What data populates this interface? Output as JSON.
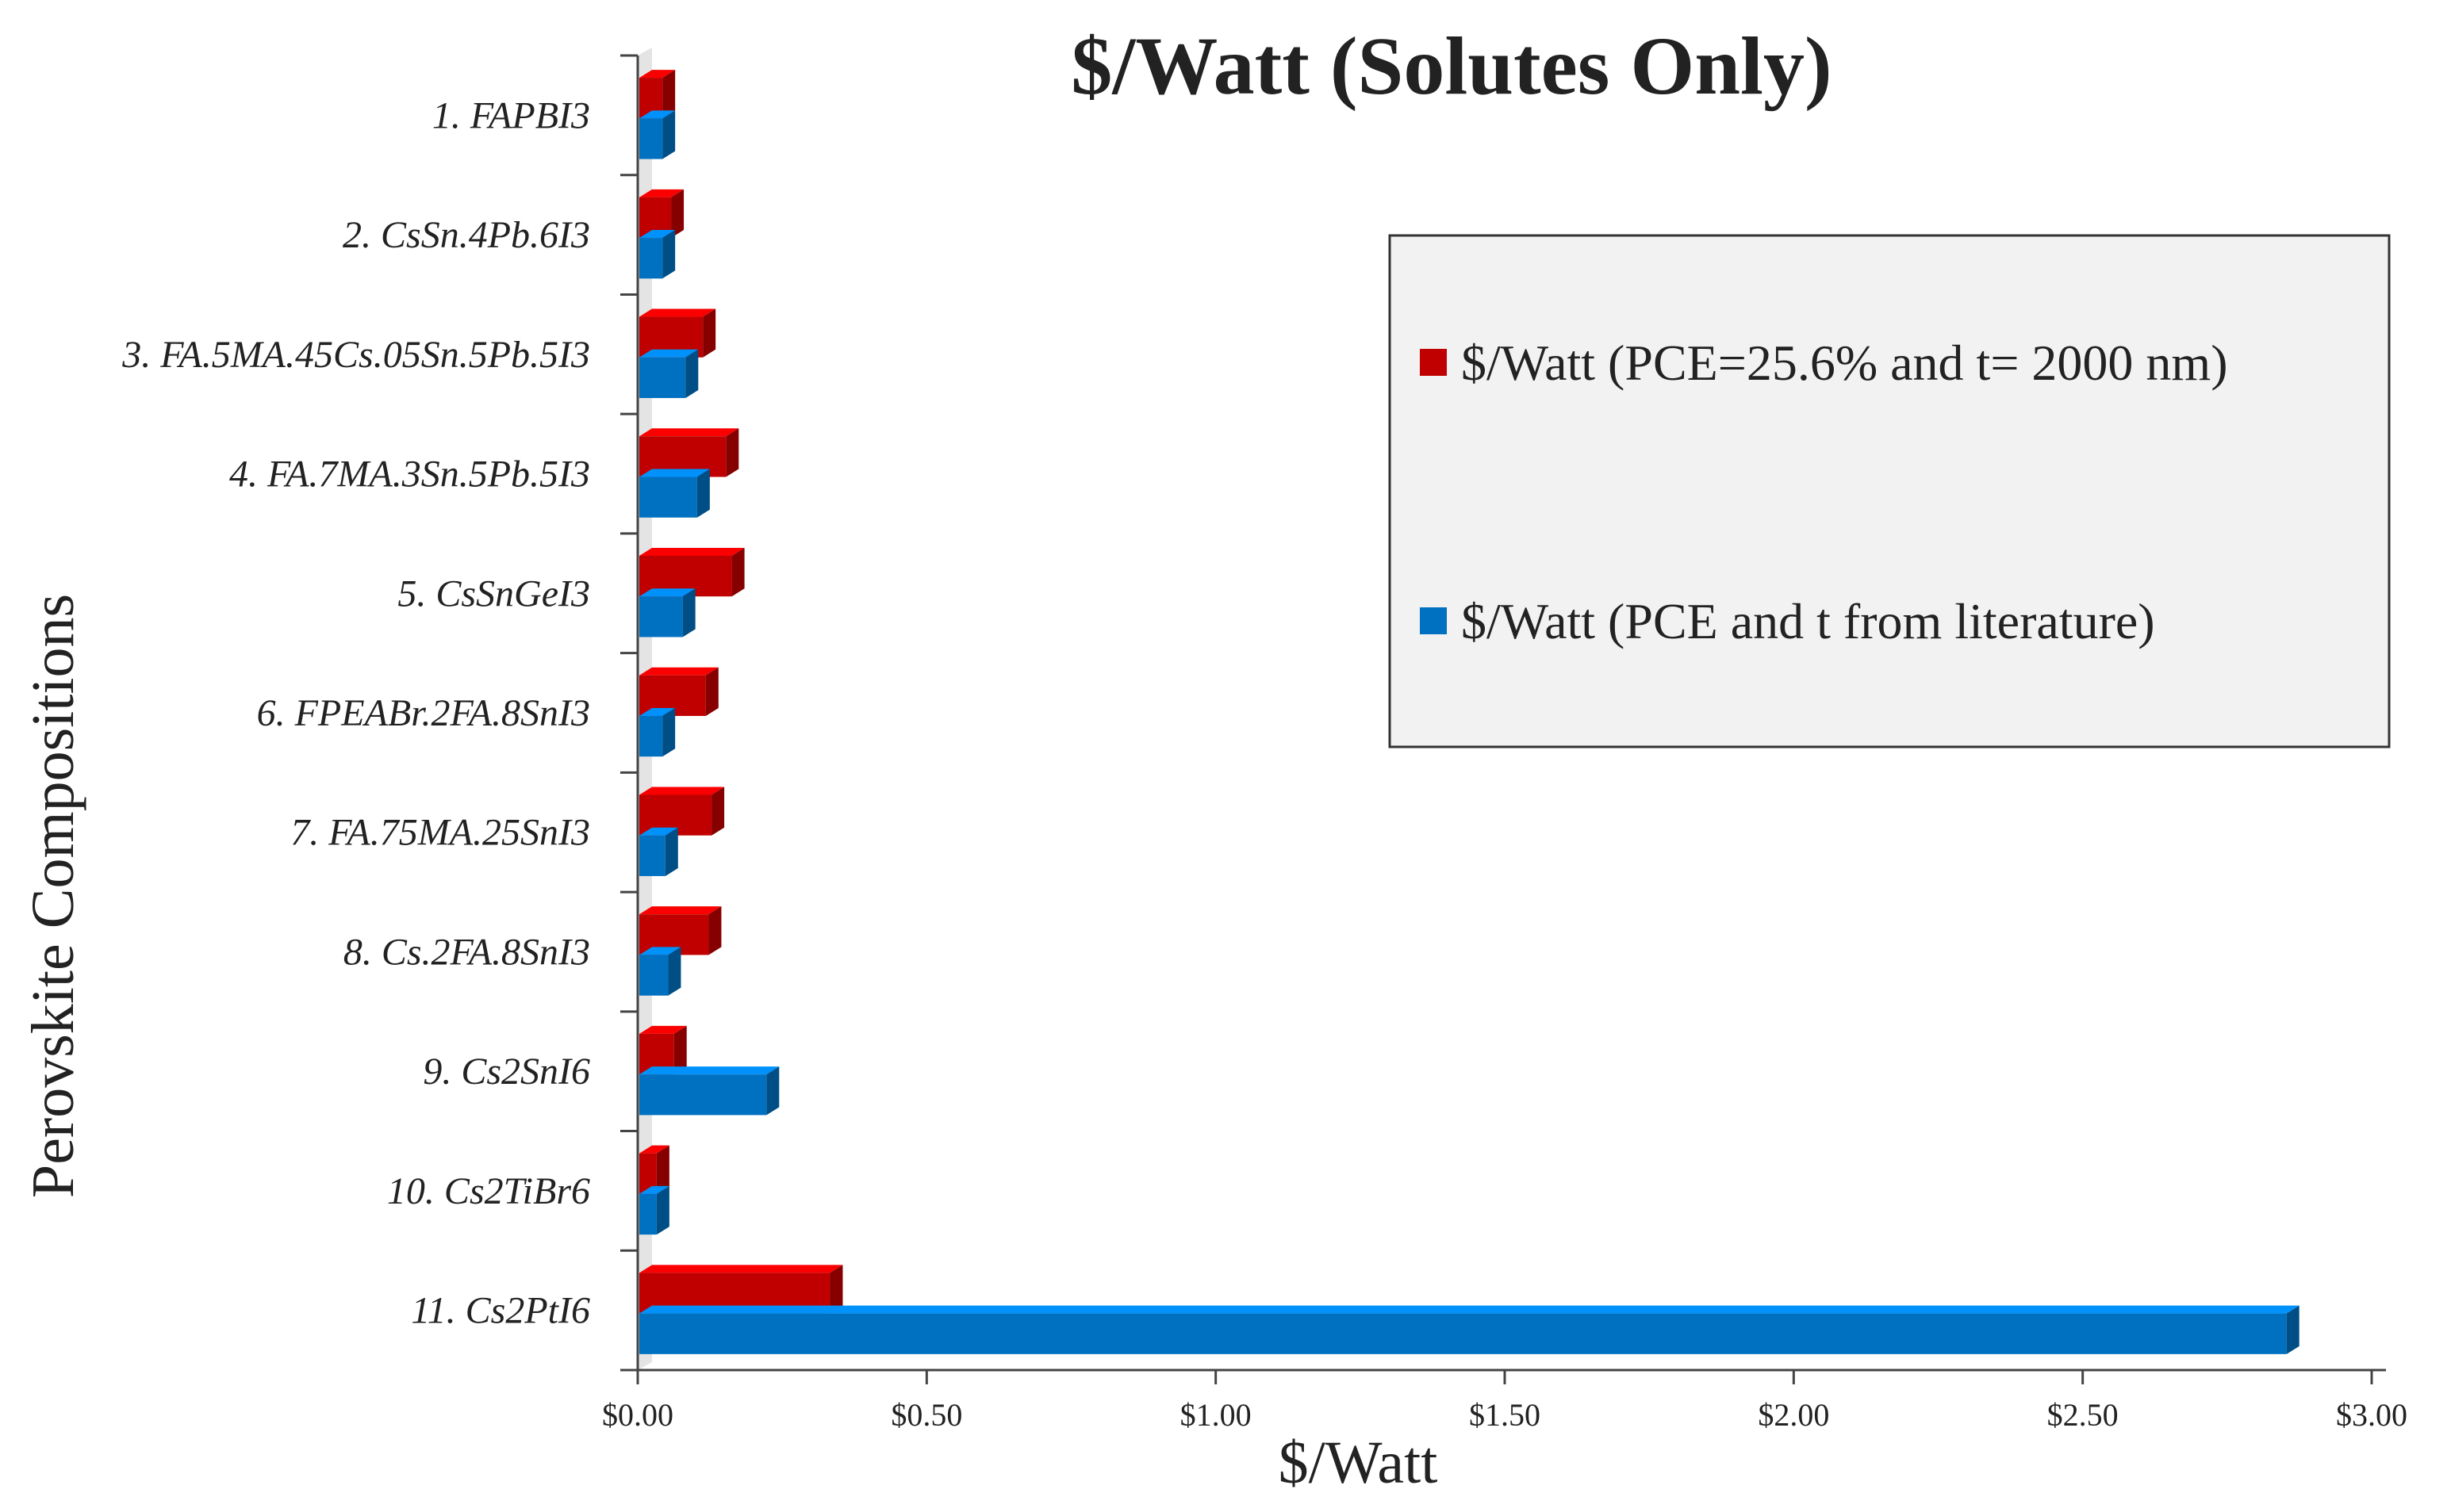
{
  "chart_data": {
    "type": "bar",
    "orientation": "horizontal",
    "title": "$/Watt (Solutes Only)",
    "xlabel": "$/Watt",
    "ylabel": "Perovskite Compositions",
    "xlim": [
      0,
      3
    ],
    "x_ticks": [
      0,
      0.5,
      1,
      1.5,
      2,
      2.5,
      3
    ],
    "x_tick_labels": [
      "$0.00",
      "$0.50",
      "$1.00",
      "$1.50",
      "$2.00",
      "$2.50",
      "$3.00"
    ],
    "categories": [
      "1. FAPBI3",
      "2. CsSn.4Pb.6I3",
      "3. FA.5MA.45Cs.05Sn.5Pb.5I3",
      "4. FA.7MA.3Sn.5Pb.5I3",
      "5. CsSnGeI3",
      "6. FPEABr.2FA.8SnI3",
      "7. FA.75MA.25SnI3",
      "8. Cs.2FA.8SnI3",
      "9. Cs2SnI6",
      "10. Cs2TiBr6",
      "11. Cs2PtI6"
    ],
    "series": [
      {
        "name": "$/Watt (PCE=25.6% and t= 2000 nm)",
        "color": "#c00000",
        "values": [
          0.04,
          0.055,
          0.11,
          0.15,
          0.16,
          0.115,
          0.125,
          0.12,
          0.06,
          0.03,
          0.33
        ]
      },
      {
        "name": "$/Watt (PCE and t from literature)",
        "color": "#0070c0",
        "values": [
          0.04,
          0.04,
          0.08,
          0.1,
          0.075,
          0.04,
          0.045,
          0.05,
          0.22,
          0.03,
          2.85
        ]
      }
    ],
    "legend_position": "right",
    "grid": false
  }
}
